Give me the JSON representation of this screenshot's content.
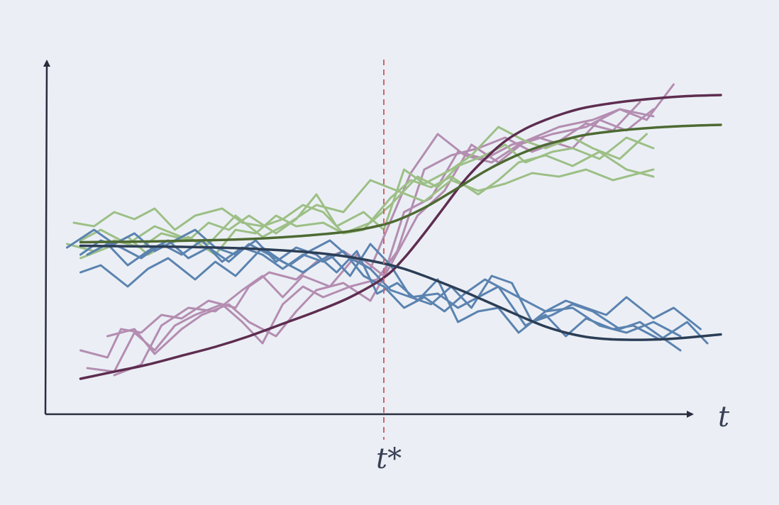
{
  "chart_data": {
    "type": "line",
    "title": "",
    "xlabel": "t",
    "ylabel": "",
    "xlim": [
      0,
      10
    ],
    "ylim": [
      0,
      10
    ],
    "grid": false,
    "legend": "none",
    "annotations": [
      {
        "type": "vertical-line",
        "x": 5,
        "label": "t*",
        "style": "dashed",
        "color": "#d0636d"
      }
    ],
    "colors": {
      "background": "#ebeff5",
      "axis": "#2a2d3e",
      "label": "#3a4156",
      "pink_light": "#b48db1",
      "pink_dark": "#5e2d50",
      "green_light": "#9dbf86",
      "green_dark": "#4e6a33",
      "blue_light": "#5b83b0",
      "blue_dark": "#2c3e56",
      "cutoff": "#d0636d"
    },
    "series": [
      {
        "group": "pink",
        "role": "sample",
        "x": [
          0.5,
          0.9,
          1.1,
          1.4,
          1.7,
          2.0,
          2.4,
          2.8,
          3.0,
          3.3,
          3.7,
          4.0,
          4.4,
          4.8,
          5.0,
          5.4,
          5.8,
          6.2,
          6.6,
          7.0,
          7.5,
          8.0,
          8.5,
          9.0
        ],
        "y": [
          1.8,
          1.6,
          2.4,
          2.3,
          2.8,
          2.7,
          3.2,
          3.0,
          3.6,
          4.0,
          3.8,
          4.3,
          4.6,
          4.1,
          5.0,
          6.8,
          7.9,
          7.3,
          7.1,
          7.6,
          7.9,
          8.1,
          8.6,
          8.4
        ]
      },
      {
        "group": "pink",
        "role": "sample",
        "x": [
          0.6,
          1.0,
          1.3,
          1.6,
          1.9,
          2.2,
          2.6,
          2.9,
          3.2,
          3.5,
          3.8,
          4.1,
          4.5,
          4.9,
          5.2,
          5.6,
          6.0,
          6.4,
          6.8,
          7.2,
          7.6,
          8.0,
          8.4,
          8.8
        ],
        "y": [
          1.3,
          1.2,
          2.3,
          1.8,
          2.5,
          2.8,
          3.1,
          2.6,
          2.0,
          3.1,
          3.6,
          3.3,
          3.6,
          3.8,
          4.6,
          6.9,
          7.3,
          7.5,
          7.8,
          7.4,
          7.7,
          8.2,
          8.0,
          8.8
        ]
      },
      {
        "group": "pink",
        "role": "sample",
        "x": [
          0.9,
          1.3,
          1.6,
          2.0,
          2.3,
          2.7,
          3.0,
          3.4,
          3.7,
          4.0,
          4.4,
          4.8,
          5.1,
          5.5,
          5.9,
          6.3,
          6.7,
          7.1,
          7.6,
          8.1,
          8.5,
          8.9,
          9.3
        ],
        "y": [
          2.2,
          2.4,
          1.7,
          2.4,
          2.8,
          3.1,
          2.6,
          2.2,
          2.9,
          3.5,
          3.7,
          3.2,
          4.2,
          5.6,
          6.3,
          7.6,
          7.1,
          7.7,
          8.1,
          8.3,
          8.6,
          8.3,
          9.3
        ]
      },
      {
        "group": "pink",
        "role": "sample",
        "x": [
          1.0,
          1.4,
          1.7,
          2.1,
          2.5,
          2.9,
          3.2,
          3.5,
          3.8,
          4.2,
          4.6,
          5.0,
          5.3,
          5.7,
          6.1,
          6.5,
          6.9,
          7.3,
          7.8,
          8.2,
          8.6,
          9.0
        ],
        "y": [
          1.1,
          1.4,
          2.5,
          3.0,
          2.9,
          3.5,
          3.9,
          3.3,
          3.9,
          3.6,
          4.5,
          3.9,
          5.7,
          6.1,
          7.4,
          7.2,
          7.6,
          7.8,
          7.5,
          8.3,
          8.0,
          8.6
        ]
      },
      {
        "group": "pink",
        "role": "trend",
        "x": [
          0.5,
          1.0,
          1.5,
          2.0,
          2.5,
          3.0,
          3.5,
          4.0,
          4.5,
          5.0,
          5.3,
          5.6,
          5.9,
          6.2,
          6.5,
          6.8,
          7.1,
          7.4,
          7.7,
          8.0,
          8.5,
          9.0,
          9.5,
          10.0
        ],
        "y": [
          1.0,
          1.2,
          1.4,
          1.65,
          1.9,
          2.2,
          2.55,
          2.9,
          3.3,
          3.85,
          4.4,
          5.1,
          5.85,
          6.6,
          7.2,
          7.7,
          8.05,
          8.3,
          8.5,
          8.65,
          8.8,
          8.9,
          8.97,
          9.0
        ]
      },
      {
        "group": "green",
        "role": "sample",
        "x": [
          0.4,
          0.7,
          1.0,
          1.3,
          1.6,
          1.9,
          2.2,
          2.6,
          2.9,
          3.2,
          3.5,
          3.8,
          4.1,
          4.4,
          4.7,
          5.1,
          5.4,
          5.7,
          6.0,
          6.4,
          6.7,
          7.0,
          7.4,
          7.8,
          8.2,
          8.6,
          9.0
        ],
        "y": [
          5.4,
          5.3,
          5.7,
          5.5,
          5.8,
          5.2,
          5.6,
          5.8,
          5.4,
          5.3,
          5.5,
          5.9,
          5.7,
          5.1,
          5.2,
          6.1,
          6.6,
          6.4,
          6.7,
          6.2,
          6.6,
          7.1,
          7.3,
          7.0,
          7.4,
          6.9,
          6.7
        ]
      },
      {
        "group": "green",
        "role": "sample",
        "x": [
          0.5,
          0.9,
          1.2,
          1.5,
          1.8,
          2.1,
          2.5,
          2.8,
          3.1,
          3.4,
          3.7,
          4.1,
          4.4,
          4.8,
          5.1,
          5.5,
          5.8,
          6.1,
          6.5,
          6.8,
          7.1,
          7.5,
          7.8,
          8.2,
          8.6,
          9.0
        ],
        "y": [
          4.4,
          4.7,
          5.0,
          4.5,
          4.8,
          5.0,
          4.5,
          5.2,
          5.1,
          5.6,
          5.3,
          5.4,
          5.1,
          5.4,
          5.9,
          6.7,
          6.4,
          7.0,
          7.3,
          7.6,
          7.1,
          7.4,
          7.5,
          7.2,
          7.8,
          7.5
        ]
      },
      {
        "group": "green",
        "role": "sample",
        "x": [
          0.3,
          0.7,
          1.0,
          1.4,
          1.7,
          2.1,
          2.4,
          2.7,
          3.0,
          3.4,
          3.7,
          4.0,
          4.3,
          4.7,
          5.0,
          5.3,
          5.6,
          6.0,
          6.3,
          6.7,
          7.1,
          7.4,
          7.8,
          8.1,
          8.5,
          8.9
        ],
        "y": [
          4.8,
          4.6,
          4.9,
          4.7,
          5.1,
          4.9,
          5.4,
          5.2,
          5.6,
          5.1,
          5.5,
          6.2,
          5.3,
          5.7,
          5.2,
          6.9,
          6.5,
          6.9,
          7.3,
          8.1,
          7.7,
          7.5,
          7.8,
          7.5,
          7.2,
          7.9
        ]
      },
      {
        "group": "green",
        "role": "sample",
        "x": [
          0.5,
          0.8,
          1.2,
          1.6,
          2.0,
          2.4,
          2.8,
          3.2,
          3.6,
          4.0,
          4.4,
          4.8,
          5.2,
          5.6,
          6.0,
          6.4,
          6.8,
          7.2,
          7.6,
          8.0,
          8.4,
          9.0
        ],
        "y": [
          4.9,
          5.2,
          4.8,
          5.3,
          5.0,
          4.8,
          5.6,
          5.0,
          5.4,
          5.9,
          5.7,
          6.6,
          6.3,
          6.0,
          6.6,
          6.3,
          6.5,
          6.8,
          6.7,
          6.9,
          6.6,
          6.9
        ]
      },
      {
        "group": "green",
        "role": "trend",
        "x": [
          0.5,
          1.0,
          1.5,
          2.0,
          2.5,
          3.0,
          3.5,
          4.0,
          4.5,
          5.0,
          5.3,
          5.6,
          5.9,
          6.2,
          6.5,
          6.8,
          7.1,
          7.4,
          7.7,
          8.0,
          8.5,
          9.0,
          9.5,
          10.0
        ],
        "y": [
          4.85,
          4.86,
          4.87,
          4.89,
          4.91,
          4.94,
          4.99,
          5.06,
          5.16,
          5.35,
          5.55,
          5.82,
          6.15,
          6.5,
          6.85,
          7.15,
          7.4,
          7.6,
          7.75,
          7.88,
          8.0,
          8.08,
          8.13,
          8.16
        ]
      },
      {
        "group": "blue",
        "role": "sample",
        "x": [
          0.6,
          0.9,
          1.2,
          1.5,
          1.8,
          2.1,
          2.4,
          2.7,
          3.0,
          3.3,
          3.6,
          3.9,
          4.2,
          4.5,
          4.8,
          5.1,
          5.4,
          5.7,
          6.0,
          6.3,
          6.6,
          6.9,
          7.2,
          7.5,
          7.8,
          8.1,
          8.5,
          8.8,
          9.1,
          9.4
        ],
        "y": [
          4.5,
          4.8,
          4.2,
          4.6,
          4.9,
          4.4,
          4.7,
          4.3,
          4.8,
          4.5,
          4.2,
          4.6,
          4.9,
          4.4,
          4.1,
          3.5,
          3.3,
          3.1,
          3.6,
          3.0,
          3.9,
          3.7,
          2.6,
          2.8,
          3.1,
          2.9,
          2.4,
          2.6,
          2.2,
          1.8
        ]
      },
      {
        "group": "blue",
        "role": "sample",
        "x": [
          0.3,
          0.7,
          1.0,
          1.3,
          1.6,
          1.9,
          2.2,
          2.5,
          2.8,
          3.1,
          3.4,
          3.7,
          4.0,
          4.3,
          4.6,
          4.9,
          5.2,
          5.5,
          5.8,
          6.1,
          6.4,
          6.7,
          7.0,
          7.4,
          7.8,
          8.2,
          8.6,
          9.0,
          9.4
        ],
        "y": [
          4.7,
          5.2,
          4.8,
          5.1,
          4.6,
          4.9,
          5.2,
          4.7,
          4.5,
          4.9,
          4.3,
          4.7,
          4.5,
          4.0,
          4.6,
          3.4,
          3.7,
          3.2,
          3.8,
          2.6,
          2.9,
          3.0,
          2.3,
          2.9,
          3.0,
          2.5,
          2.3,
          2.6,
          2.2
        ]
      },
      {
        "group": "blue",
        "role": "sample",
        "x": [
          0.5,
          0.8,
          1.2,
          1.5,
          1.8,
          2.2,
          2.5,
          2.8,
          3.2,
          3.5,
          3.8,
          4.2,
          4.5,
          4.8,
          5.1,
          5.4,
          5.8,
          6.1,
          6.4,
          6.7,
          7.1,
          7.4,
          7.7,
          8.0,
          8.4,
          8.7,
          9.1,
          9.5,
          9.8
        ],
        "y": [
          4.0,
          4.2,
          3.6,
          4.1,
          4.4,
          3.8,
          4.3,
          3.9,
          4.7,
          4.3,
          4.0,
          4.5,
          3.9,
          4.8,
          4.2,
          3.3,
          3.4,
          3.0,
          3.3,
          3.6,
          2.5,
          2.8,
          2.2,
          2.7,
          2.4,
          2.5,
          2.1,
          2.6,
          2.0
        ]
      },
      {
        "group": "blue",
        "role": "sample",
        "x": [
          0.5,
          0.8,
          1.1,
          1.4,
          1.7,
          2.0,
          2.3,
          2.6,
          2.9,
          3.2,
          3.5,
          3.8,
          4.1,
          4.4,
          4.7,
          5.0,
          5.3,
          5.6,
          5.9,
          6.2,
          6.5,
          6.8,
          7.1,
          7.4,
          7.7,
          8.0,
          8.3,
          8.6,
          9.0,
          9.3,
          9.7
        ],
        "y": [
          4.5,
          4.9,
          4.7,
          4.4,
          4.8,
          4.5,
          4.9,
          4.3,
          4.7,
          4.5,
          4.1,
          4.5,
          4.3,
          4.6,
          3.9,
          3.6,
          3.0,
          3.3,
          2.9,
          3.4,
          3.8,
          3.5,
          3.2,
          2.9,
          3.2,
          3.0,
          2.8,
          3.3,
          2.7,
          3.0,
          2.4
        ]
      },
      {
        "group": "blue",
        "role": "trend",
        "x": [
          0.5,
          1.0,
          1.5,
          2.0,
          2.5,
          3.0,
          3.5,
          4.0,
          4.5,
          5.0,
          5.3,
          5.6,
          5.9,
          6.2,
          6.5,
          6.8,
          7.1,
          7.4,
          7.7,
          8.0,
          8.3,
          8.6,
          8.9,
          9.2,
          9.5,
          10.0
        ],
        "y": [
          4.75,
          4.74,
          4.73,
          4.72,
          4.7,
          4.67,
          4.62,
          4.55,
          4.43,
          4.25,
          4.1,
          3.9,
          3.68,
          3.45,
          3.2,
          2.95,
          2.7,
          2.47,
          2.3,
          2.18,
          2.12,
          2.1,
          2.1,
          2.12,
          2.16,
          2.25
        ]
      }
    ]
  }
}
